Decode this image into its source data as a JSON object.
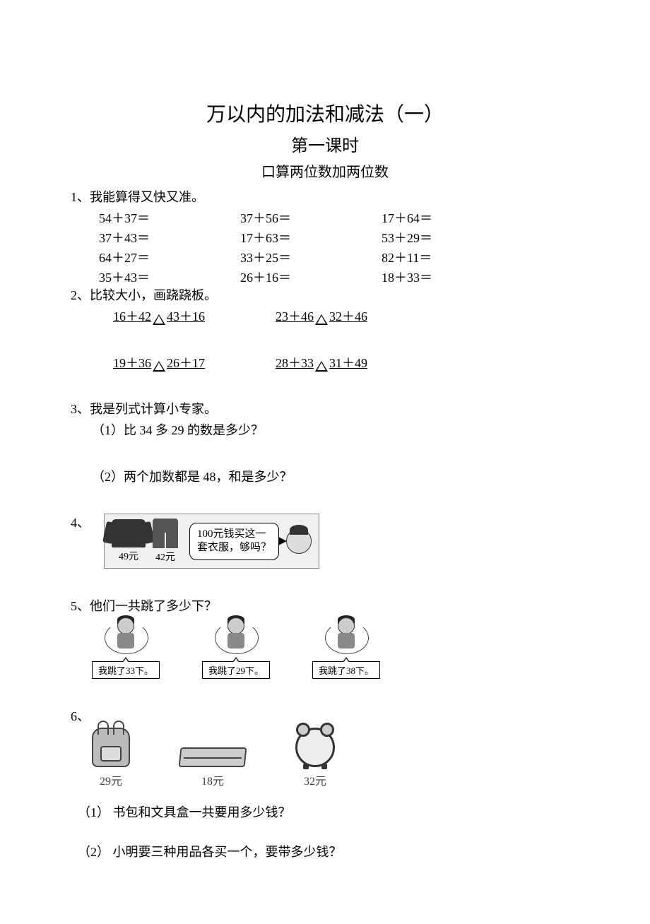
{
  "title": "万以内的加法和减法（一）",
  "subtitle": "第一课时",
  "subsubtitle": "口算两位数加两位数",
  "q1": {
    "label": "1、我能算得又快又准。",
    "cells": [
      "54＋37＝",
      "37＋56＝",
      "17＋64＝",
      "37＋43＝",
      "17＋63＝",
      "53＋29＝",
      "64＋27＝",
      "33＋25＝",
      "82＋11＝",
      "35＋43＝",
      "26＋16＝",
      "18＋33＝"
    ]
  },
  "q2": {
    "label": "2、比较大小，画跷跷板。",
    "rows": [
      [
        {
          "left": "16＋42",
          "right": "43＋16"
        },
        {
          "left": "23＋46",
          "right": "32＋46"
        }
      ],
      [
        {
          "left": "19＋36",
          "right": "26＋17"
        },
        {
          "left": "28＋33",
          "right": "31＋49"
        }
      ]
    ]
  },
  "q3": {
    "label": "3、我是列式计算小专家。",
    "subs": [
      "（1）比 34 多 29 的数是多少？",
      "（2）两个加数都是 48，和是多少？"
    ]
  },
  "q4": {
    "label": "4、",
    "jacket_price": "49元",
    "pants_price": "42元",
    "speech": "100元钱买这一\n套衣服，够吗？"
  },
  "q5": {
    "label": "5、他们一共跳了多少下？",
    "jumpers": [
      "我跳了33下。",
      "我跳了29下。",
      "我跳了38下。"
    ]
  },
  "q6": {
    "label": "6、",
    "items": [
      {
        "name": "backpack",
        "price": "29元"
      },
      {
        "name": "pencilcase",
        "price": "18元"
      },
      {
        "name": "clock",
        "price": "32元"
      }
    ],
    "subs": [
      "（1）  书包和文具盒一共要用多少钱？",
      "（2）  小明要三种用品各买一个，要带多少钱？"
    ]
  }
}
